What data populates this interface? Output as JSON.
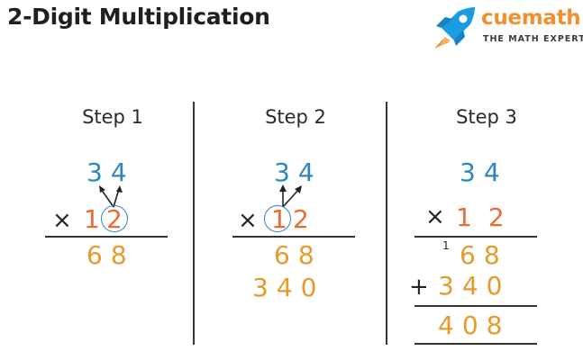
{
  "title": "2-Digit Multiplication",
  "logo": {
    "name": "cuemath",
    "tagline": "THE MATH EXPERT",
    "icon": "rocket-icon",
    "colors": {
      "rocket_body": "#1b9be0",
      "rocket_flame": "#f2902f",
      "name": "#f2902f"
    }
  },
  "colors": {
    "multiplicand": "#2e86c1",
    "multiplier": "#ee6a35",
    "products": "#e69a2c"
  },
  "steps": [
    {
      "title": "Step 1",
      "multiplicand": "34",
      "times": "×",
      "multiplier_tens": "1",
      "multiplier_ones": "2",
      "partial_1": "68"
    },
    {
      "title": "Step 2",
      "multiplicand": "34",
      "times": "×",
      "multiplier_tens": "1",
      "multiplier_ones": "2",
      "partial_1": "68",
      "partial_2": "340"
    },
    {
      "title": "Step 3",
      "multiplicand": "34",
      "times": "×",
      "multiplier": "12",
      "carry": "1",
      "partial_1": "68",
      "plus": "+",
      "partial_2": "340",
      "result": "408"
    }
  ]
}
